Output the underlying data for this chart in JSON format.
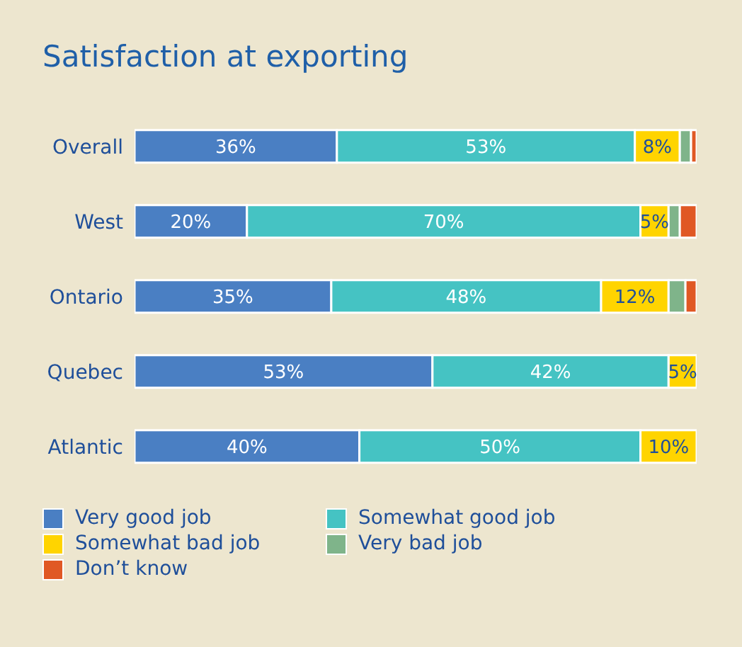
{
  "chart_data": {
    "type": "bar",
    "orientation": "horizontal",
    "stacked": true,
    "title": "Satisfaction at exporting",
    "categories": [
      "Overall",
      "West",
      "Ontario",
      "Quebec",
      "Atlantic"
    ],
    "series": [
      {
        "name": "Very good job",
        "color": "#4a7fc3",
        "values": [
          36,
          20,
          35,
          53,
          40
        ],
        "value_labels": [
          "36%",
          "20%",
          "35%",
          "53%",
          "40%"
        ]
      },
      {
        "name": "Somewhat good job",
        "color": "#45c3c3",
        "values": [
          53,
          70,
          48,
          42,
          50
        ],
        "value_labels": [
          "53%",
          "70%",
          "48%",
          "42%",
          "50%"
        ]
      },
      {
        "name": "Somewhat bad job",
        "color": "#ffd400",
        "values": [
          8,
          5,
          12,
          5,
          10
        ],
        "value_labels": [
          "8%",
          "5%",
          "12%",
          "5%",
          "10%"
        ]
      },
      {
        "name": "Very bad job",
        "color": "#7fb48a",
        "values": [
          2,
          2,
          3,
          0,
          0
        ],
        "value_labels": [
          null,
          null,
          null,
          null,
          null
        ]
      },
      {
        "name": "Don’t know",
        "color": "#e05824",
        "values": [
          1,
          3,
          2,
          0,
          0
        ],
        "value_labels": [
          null,
          null,
          null,
          null,
          null
        ]
      }
    ],
    "xlim": [
      0,
      100
    ],
    "tick_labels": "y",
    "legend": "bottom"
  }
}
